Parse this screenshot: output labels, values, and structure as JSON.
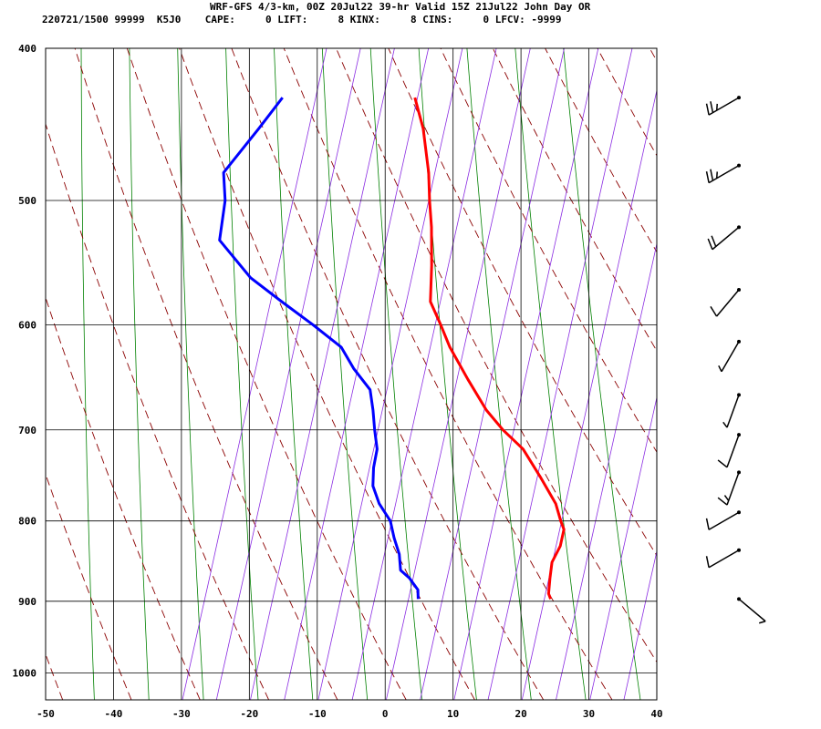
{
  "header": {
    "title": "WRF-GFS 4/3-km, 00Z 20Jul22 39-hr Valid 15Z 21Jul22 John Day OR",
    "stats": "220721/1500 99999  K5J0    CAPE:     0 LIFT:     8 KINX:     8 CINS:     0 LFCV: -9999"
  },
  "chart_data": {
    "type": "line",
    "chart_kind": "skew-T log-P sounding",
    "xlim": [
      -50,
      40
    ],
    "ylim_pressure": [
      1040,
      400
    ],
    "x_ticks": [
      -50,
      -40,
      -30,
      -20,
      -10,
      0,
      10,
      20,
      30,
      40
    ],
    "y_ticks": [
      400,
      500,
      600,
      700,
      800,
      900,
      1000
    ],
    "grid": true,
    "series": [
      {
        "key": "temperature",
        "color": "#ff0000",
        "points": [
          {
            "p": 897,
            "t": 20.5
          },
          {
            "p": 890,
            "t": 20.0
          },
          {
            "p": 870,
            "t": 19.6
          },
          {
            "p": 850,
            "t": 19.3
          },
          {
            "p": 830,
            "t": 19.9
          },
          {
            "p": 810,
            "t": 19.8
          },
          {
            "p": 800,
            "t": 19.0
          },
          {
            "p": 780,
            "t": 17.6
          },
          {
            "p": 750,
            "t": 14.3
          },
          {
            "p": 720,
            "t": 10.7
          },
          {
            "p": 700,
            "t": 7.0
          },
          {
            "p": 680,
            "t": 3.8
          },
          {
            "p": 650,
            "t": -0.1
          },
          {
            "p": 620,
            "t": -4.0
          },
          {
            "p": 600,
            "t": -6.2
          },
          {
            "p": 580,
            "t": -8.6
          },
          {
            "p": 550,
            "t": -9.8
          },
          {
            "p": 520,
            "t": -11.3
          },
          {
            "p": 500,
            "t": -12.6
          },
          {
            "p": 480,
            "t": -13.8
          },
          {
            "p": 450,
            "t": -16.3
          },
          {
            "p": 430,
            "t": -18.7
          }
        ]
      },
      {
        "key": "dewpoint",
        "color": "#0000ff",
        "points": [
          {
            "p": 897,
            "t": 1.0
          },
          {
            "p": 885,
            "t": 0.6
          },
          {
            "p": 870,
            "t": -1.1
          },
          {
            "p": 860,
            "t": -2.7
          },
          {
            "p": 840,
            "t": -3.5
          },
          {
            "p": 820,
            "t": -4.9
          },
          {
            "p": 800,
            "t": -6.1
          },
          {
            "p": 780,
            "t": -8.4
          },
          {
            "p": 760,
            "t": -10.0
          },
          {
            "p": 740,
            "t": -10.6
          },
          {
            "p": 720,
            "t": -10.8
          },
          {
            "p": 700,
            "t": -11.9
          },
          {
            "p": 680,
            "t": -12.9
          },
          {
            "p": 660,
            "t": -14.1
          },
          {
            "p": 640,
            "t": -17.3
          },
          {
            "p": 620,
            "t": -20.0
          },
          {
            "p": 600,
            "t": -25.0
          },
          {
            "p": 580,
            "t": -30.5
          },
          {
            "p": 560,
            "t": -36.0
          },
          {
            "p": 530,
            "t": -42.0
          },
          {
            "p": 500,
            "t": -42.7
          },
          {
            "p": 480,
            "t": -44.0
          },
          {
            "p": 450,
            "t": -40.5
          },
          {
            "p": 430,
            "t": -38.2
          }
        ]
      }
    ],
    "background_lines": {
      "isotherms_color": "#000000",
      "dry_adiabats_color": "#8b0000",
      "moist_adiabats_color": "#8a2be2",
      "mixing_ratio_color": "#008000"
    },
    "wind_barbs": [
      {
        "p": 430,
        "speed_kt": 25,
        "dir_deg": 240
      },
      {
        "p": 475,
        "speed_kt": 25,
        "dir_deg": 240
      },
      {
        "p": 520,
        "speed_kt": 20,
        "dir_deg": 230
      },
      {
        "p": 570,
        "speed_kt": 10,
        "dir_deg": 220
      },
      {
        "p": 615,
        "speed_kt": 5,
        "dir_deg": 210
      },
      {
        "p": 665,
        "speed_kt": 5,
        "dir_deg": 200
      },
      {
        "p": 705,
        "speed_kt": 10,
        "dir_deg": 200
      },
      {
        "p": 745,
        "speed_kt": 15,
        "dir_deg": 200
      },
      {
        "p": 790,
        "speed_kt": 10,
        "dir_deg": 240
      },
      {
        "p": 835,
        "speed_kt": 10,
        "dir_deg": 240
      },
      {
        "p": 897,
        "speed_kt": 5,
        "dir_deg": 130
      }
    ]
  },
  "colors": {
    "temperature": "#ff0000",
    "dewpoint": "#0000ff"
  }
}
